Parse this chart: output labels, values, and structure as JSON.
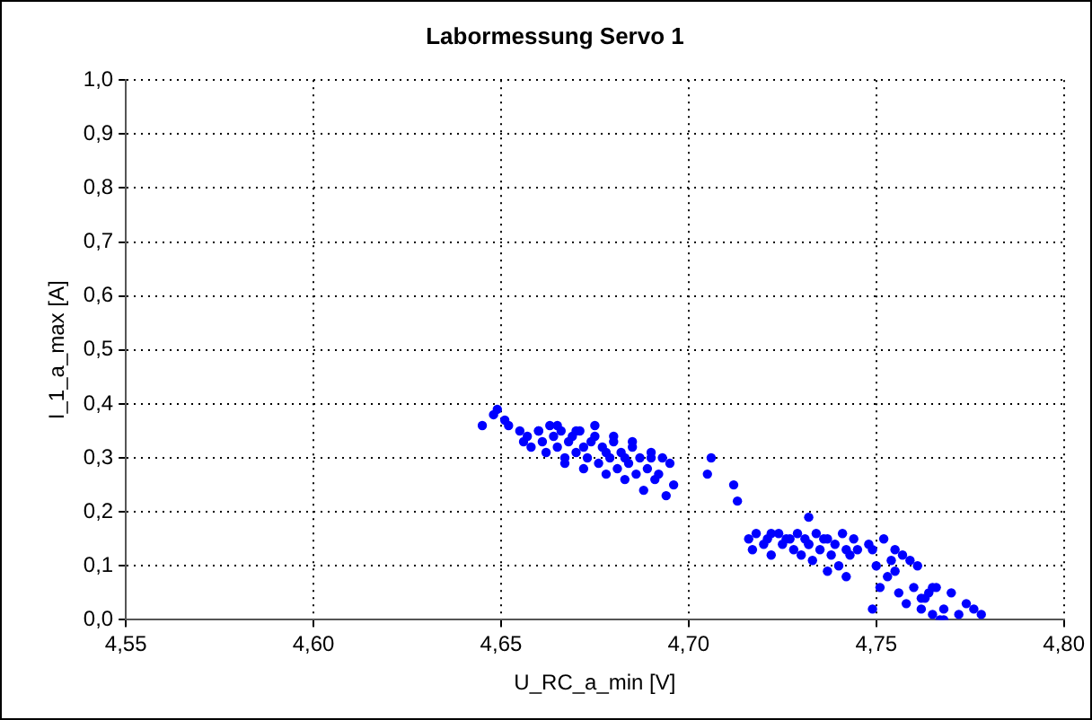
{
  "chart_data": {
    "type": "scatter",
    "title": "Labormessung Servo 1",
    "xlabel": "U_RC_a_min [V]",
    "ylabel": "I_1_a_max [A]",
    "xlim": [
      4.55,
      4.8
    ],
    "xticks": [
      {
        "value": 4.55,
        "label": "4,55"
      },
      {
        "value": 4.6,
        "label": "4,60"
      },
      {
        "value": 4.65,
        "label": "4,65"
      },
      {
        "value": 4.7,
        "label": "4,70"
      },
      {
        "value": 4.75,
        "label": "4,75"
      },
      {
        "value": 4.8,
        "label": "4,80"
      }
    ],
    "ylim": [
      0,
      1
    ],
    "yticks": [
      {
        "value": 0,
        "label": "0,0"
      },
      {
        "value": 0.1,
        "label": "0,1"
      },
      {
        "value": 0.2,
        "label": "0,2"
      },
      {
        "value": 0.3,
        "label": "0,3"
      },
      {
        "value": 0.4,
        "label": "0,4"
      },
      {
        "value": 0.5,
        "label": "0,5"
      },
      {
        "value": 0.6,
        "label": "0,6"
      },
      {
        "value": 0.7,
        "label": "0,7"
      },
      {
        "value": 0.8,
        "label": "0,8"
      },
      {
        "value": 0.9,
        "label": "0,9"
      },
      {
        "value": 1,
        "label": "1,0"
      }
    ],
    "grid": true,
    "marker": "circle",
    "legend": false,
    "series": [
      {
        "color": "#0000ff",
        "x": [
          4.645,
          4.648,
          4.649,
          4.651,
          4.652,
          4.655,
          4.656,
          4.657,
          4.658,
          4.66,
          4.661,
          4.662,
          4.663,
          4.664,
          4.665,
          4.666,
          4.667,
          4.668,
          4.669,
          4.67,
          4.671,
          4.672,
          4.673,
          4.674,
          4.675,
          4.676,
          4.677,
          4.678,
          4.679,
          4.68,
          4.681,
          4.682,
          4.683,
          4.684,
          4.685,
          4.686,
          4.687,
          4.688,
          4.689,
          4.69,
          4.691,
          4.692,
          4.693,
          4.694,
          4.695,
          4.696,
          4.66,
          4.665,
          4.67,
          4.675,
          4.68,
          4.685,
          4.69,
          4.667,
          4.672,
          4.678,
          4.683,
          4.705,
          4.706,
          4.712,
          4.713,
          4.716,
          4.717,
          4.718,
          4.72,
          4.721,
          4.722,
          4.724,
          4.725,
          4.726,
          4.728,
          4.729,
          4.73,
          4.731,
          4.732,
          4.733,
          4.734,
          4.735,
          4.736,
          4.737,
          4.738,
          4.739,
          4.74,
          4.741,
          4.742,
          4.743,
          4.744,
          4.745,
          4.722,
          4.727,
          4.732,
          4.737,
          4.742,
          4.732,
          4.748,
          4.749,
          4.75,
          4.751,
          4.752,
          4.753,
          4.754,
          4.755,
          4.756,
          4.757,
          4.758,
          4.759,
          4.76,
          4.761,
          4.762,
          4.763,
          4.764,
          4.765,
          4.766,
          4.767,
          4.768,
          4.77,
          4.772,
          4.774,
          4.776,
          4.778,
          4.749,
          4.755,
          4.762,
          4.765,
          4.768
        ],
        "values": [
          0.36,
          0.38,
          0.39,
          0.37,
          0.36,
          0.35,
          0.33,
          0.34,
          0.32,
          0.35,
          0.33,
          0.31,
          0.36,
          0.34,
          0.32,
          0.35,
          0.3,
          0.33,
          0.34,
          0.31,
          0.35,
          0.32,
          0.3,
          0.33,
          0.34,
          0.29,
          0.32,
          0.31,
          0.3,
          0.33,
          0.28,
          0.31,
          0.3,
          0.29,
          0.32,
          0.27,
          0.3,
          0.24,
          0.28,
          0.31,
          0.26,
          0.27,
          0.3,
          0.23,
          0.29,
          0.25,
          0.35,
          0.36,
          0.35,
          0.36,
          0.34,
          0.33,
          0.3,
          0.29,
          0.28,
          0.27,
          0.26,
          0.27,
          0.3,
          0.25,
          0.22,
          0.15,
          0.13,
          0.16,
          0.14,
          0.15,
          0.12,
          0.16,
          0.14,
          0.15,
          0.13,
          0.16,
          0.12,
          0.15,
          0.14,
          0.11,
          0.16,
          0.13,
          0.15,
          0.09,
          0.12,
          0.14,
          0.1,
          0.16,
          0.08,
          0.12,
          0.15,
          0.13,
          0.16,
          0.15,
          0.14,
          0.15,
          0.13,
          0.19,
          0.14,
          0.13,
          0.1,
          0.06,
          0.15,
          0.08,
          0.11,
          0.13,
          0.05,
          0.12,
          0.03,
          0.11,
          0.06,
          0.1,
          0.02,
          0.04,
          0.05,
          0.01,
          0.06,
          0.0,
          0.02,
          0.05,
          0.01,
          0.03,
          0.02,
          0.01,
          0.02,
          0.09,
          0.04,
          0.06,
          0.0
        ]
      }
    ]
  }
}
